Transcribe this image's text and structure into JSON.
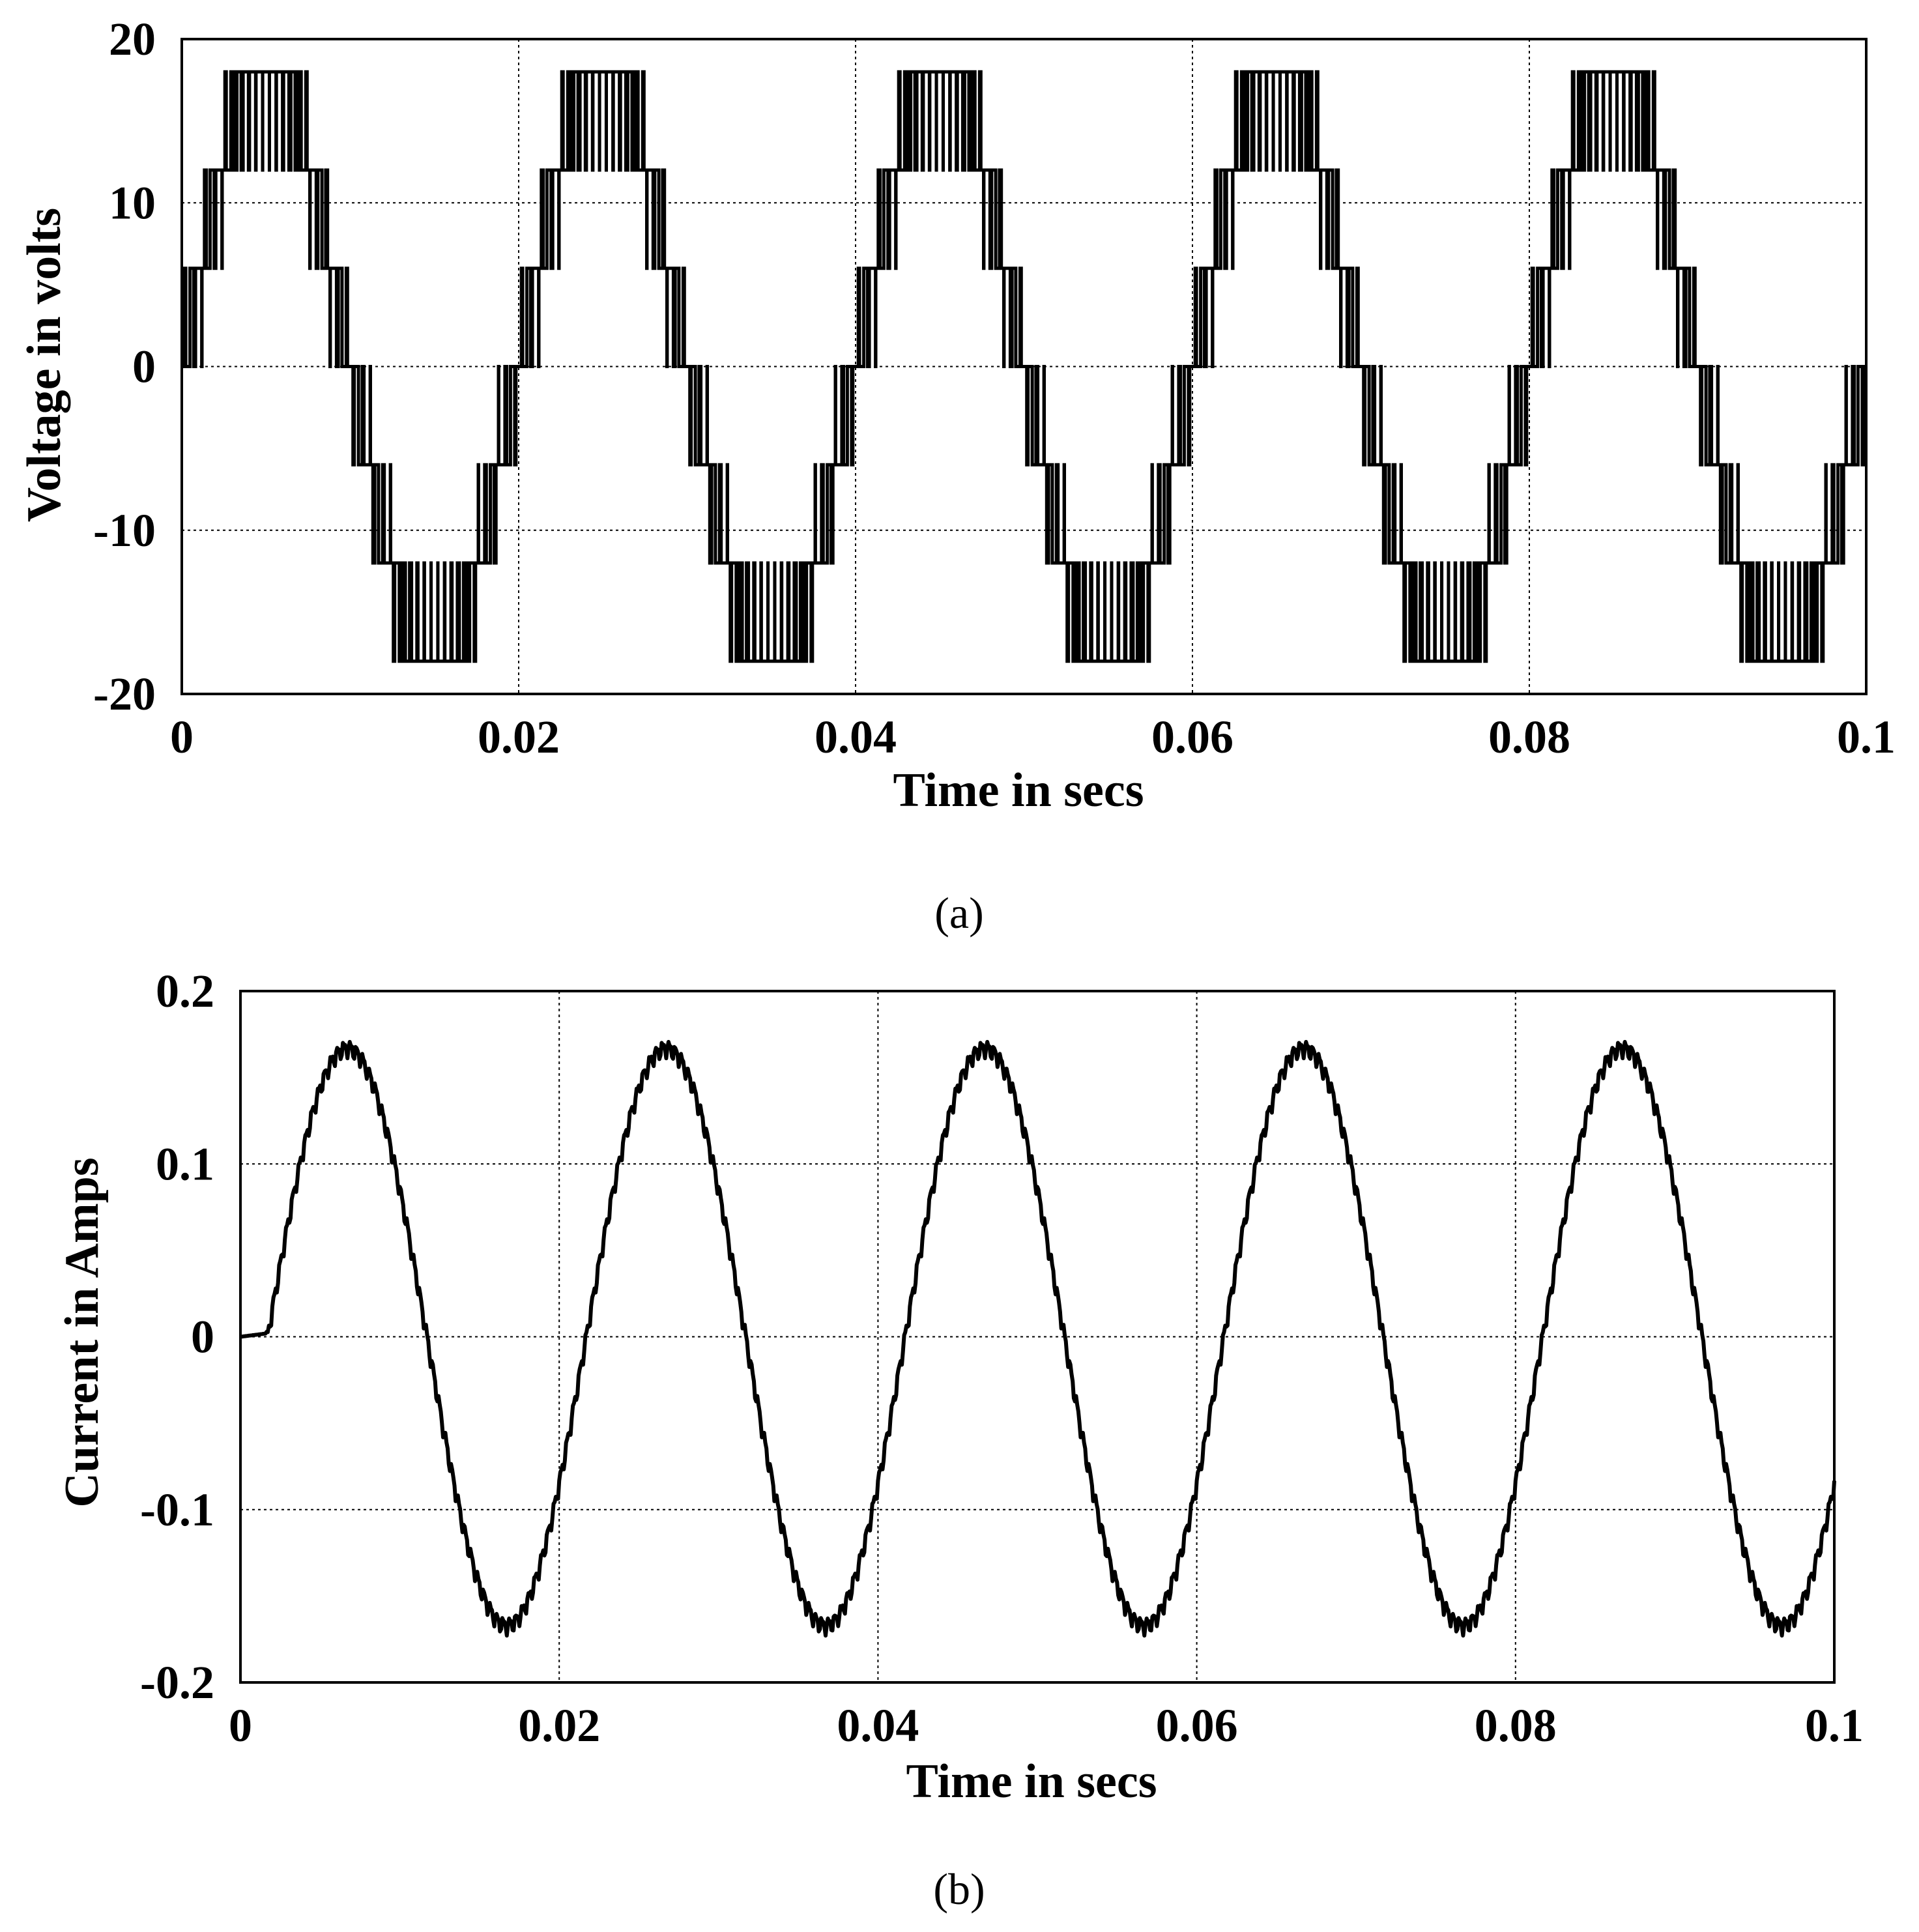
{
  "chart_data": [
    {
      "panel": "(a)",
      "type": "line",
      "title": "",
      "xlabel": "Time in secs",
      "ylabel": "Voltage in volts",
      "xlim": [
        0,
        0.1
      ],
      "ylim": [
        -20,
        20
      ],
      "xticks": [
        "0",
        "0.02",
        "0.04",
        "0.06",
        "0.08",
        "0.1"
      ],
      "yticks": [
        "20",
        "10",
        "0",
        "-10",
        "-20"
      ],
      "grid": true,
      "waveform": "multilevel PWM staircase",
      "fundamental_period_s": 0.02,
      "switching_period_s": 0.0004,
      "levels": [
        -18,
        -12,
        -6,
        0,
        6,
        12,
        18
      ],
      "peak_amplitude": 18,
      "series": [
        {
          "name": "",
          "color": "#000000"
        }
      ]
    },
    {
      "panel": "(b)",
      "type": "line",
      "title": "",
      "xlabel": "Time in secs",
      "ylabel": "Current in Amps",
      "xlim": [
        0,
        0.1
      ],
      "ylim": [
        -0.2,
        0.2
      ],
      "xticks": [
        "0",
        "0.02",
        "0.04",
        "0.06",
        "0.08",
        "0.1"
      ],
      "yticks": [
        "0.2",
        "0.1",
        "0",
        "-0.1",
        "-0.2"
      ],
      "grid": true,
      "waveform": "sinusoid with ripple",
      "fundamental_period_s": 0.02,
      "amplitude": 0.167,
      "phase_lag_s": 0.0017,
      "x": [
        0,
        0.0017,
        0.0067,
        0.0117,
        0.0167,
        0.0217,
        0.0267,
        0.0317,
        0.0367,
        0.0417,
        0.0467,
        0.0517,
        0.0567,
        0.0617,
        0.0667,
        0.0717,
        0.0767,
        0.0817,
        0.0867,
        0.0917,
        0.0967,
        0.1
      ],
      "y": [
        0,
        0.0,
        0.167,
        0.0,
        -0.167,
        0.0,
        0.167,
        0.0,
        -0.167,
        0.0,
        0.167,
        0.0,
        -0.167,
        0.0,
        0.167,
        0.0,
        -0.167,
        0.0,
        0.167,
        0.0,
        -0.167,
        -0.04
      ],
      "series": [
        {
          "name": "",
          "color": "#000000"
        }
      ]
    }
  ],
  "captions": {
    "a": "(a)",
    "b": "(b)"
  }
}
